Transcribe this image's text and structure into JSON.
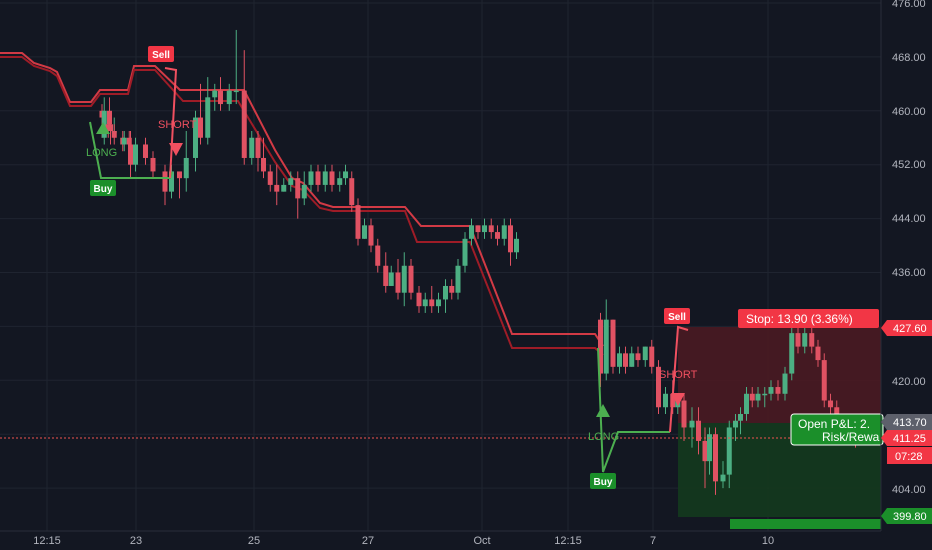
{
  "chart_data": {
    "type": "candlestick",
    "y_axis": {
      "ticks": [
        "476.00",
        "468.00",
        "460.00",
        "452.00",
        "444.00",
        "436.00",
        "427.60",
        "420.00",
        "413.70",
        "411.25",
        "404.00",
        "399.80"
      ],
      "range": [
        397,
        477
      ]
    },
    "x_axis": {
      "ticks": [
        "12:15",
        "23",
        "25",
        "27",
        "Oct",
        "12:15",
        "7",
        "10"
      ]
    },
    "price_labels": {
      "stop_price": "427.60",
      "entry_price": "413.70",
      "last_price": "411.25",
      "countdown": "07:28",
      "target_price": "399.80"
    },
    "annotations": {
      "sell_1": "Sell",
      "short_1": "SHORT",
      "long_1": "LONG",
      "buy_1": "Buy",
      "long_2": "LONG",
      "buy_2": "Buy",
      "sell_2": "Sell",
      "short_2": "SHORT"
    },
    "position_tool": {
      "stop_label": "Stop: 13.90 (3.36%)",
      "pnl_label": "Open P&L: 2.",
      "rr_label": "Risk/Rewa"
    },
    "colors": {
      "background": "#131722",
      "grid": "#1f2430",
      "up": "#26a69a",
      "down": "#ef5350",
      "bull_candle": "#4caf83",
      "bear_candle": "#e05263",
      "trail_stop": "#c62828",
      "long_signal": "#4caf50",
      "short_signal": "#f05060",
      "stop_zone": "#4a1a22",
      "target_zone": "#143a1e",
      "label_red": "#f23645",
      "label_green": "#1b8f2a"
    },
    "candles": [
      [
        406,
        460,
        459,
        456,
        461
      ],
      [
        415,
        456,
        460,
        455,
        462
      ],
      [
        436,
        460,
        458,
        457,
        462
      ],
      [
        455,
        457,
        457,
        456,
        459
      ],
      [
        431,
        458,
        457,
        456,
        459
      ],
      [
        440,
        458,
        457,
        455,
        459
      ],
      [
        455,
        457,
        456,
        455,
        458
      ],
      [
        489,
        456,
        455,
        454,
        457
      ],
      [
        495,
        455,
        456,
        454,
        457
      ],
      [
        515,
        456,
        455,
        454,
        457
      ],
      [
        520,
        455,
        452,
        450,
        457
      ],
      [
        540,
        452,
        455,
        451,
        456
      ],
      [
        580,
        455,
        453,
        452,
        456
      ],
      [
        610,
        453,
        451,
        450,
        454
      ],
      [
        658,
        451,
        448,
        446,
        452
      ],
      [
        684,
        448,
        451,
        447,
        452
      ],
      [
        716,
        451,
        450,
        447,
        451
      ],
      [
        743,
        450,
        453,
        448,
        457
      ],
      [
        780,
        453,
        459,
        451,
        460
      ],
      [
        800,
        459,
        456,
        455,
        464
      ],
      [
        829,
        456,
        462,
        455,
        465
      ],
      [
        857,
        462,
        463,
        460,
        464
      ],
      [
        880,
        463,
        461,
        460,
        465
      ],
      [
        915,
        461,
        463,
        460,
        464
      ],
      [
        943,
        463,
        463,
        461,
        472
      ],
      [
        975,
        463,
        453,
        452,
        469
      ],
      [
        1005,
        453,
        456,
        452,
        457
      ],
      [
        1030,
        456,
        453,
        451,
        457
      ],
      [
        1052,
        453,
        451,
        450,
        456
      ],
      [
        1079,
        451,
        449,
        448,
        452
      ],
      [
        1105,
        449,
        448,
        446,
        452
      ],
      [
        1133,
        448,
        449,
        448,
        450
      ],
      [
        1161,
        449,
        450,
        448,
        451
      ],
      [
        1189,
        450,
        447,
        444,
        451
      ],
      [
        1215,
        447,
        449,
        446,
        451
      ],
      [
        1242,
        449,
        451,
        448,
        452
      ],
      [
        1270,
        451,
        449,
        448,
        452
      ],
      [
        1299,
        449,
        451,
        448,
        452
      ],
      [
        1326,
        451,
        449,
        448,
        452
      ],
      [
        1357,
        449,
        450,
        448,
        451
      ],
      [
        1380,
        450,
        451,
        449,
        452
      ],
      [
        1405,
        450,
        446,
        445,
        451
      ],
      [
        1430,
        446,
        441,
        440,
        447
      ],
      [
        1456,
        441,
        443,
        441,
        444
      ],
      [
        1482,
        443,
        440,
        439,
        444
      ],
      [
        1509,
        440,
        437,
        436,
        441
      ],
      [
        1541,
        437,
        434,
        433,
        439
      ],
      [
        1563,
        434,
        436,
        434,
        437
      ],
      [
        1590,
        436,
        433,
        432,
        438
      ],
      [
        1615,
        433,
        437,
        431,
        439
      ],
      [
        1642,
        437,
        433,
        432,
        438
      ],
      [
        1674,
        433,
        431,
        430,
        434
      ],
      [
        1699,
        431,
        432,
        430,
        433
      ],
      [
        1725,
        432,
        431,
        430,
        434
      ],
      [
        1752,
        431,
        432,
        430,
        433
      ],
      [
        1780,
        432,
        434,
        430,
        435
      ],
      [
        1805,
        434,
        433,
        432,
        435
      ],
      [
        1830,
        433,
        437,
        432,
        438
      ],
      [
        1858,
        437,
        441,
        436,
        442
      ],
      [
        1884,
        441,
        443,
        440,
        444
      ],
      [
        1910,
        443,
        442,
        441,
        443
      ],
      [
        1936,
        442,
        443,
        441,
        444
      ],
      [
        1963,
        443,
        442,
        441,
        444
      ],
      [
        1988,
        442,
        441,
        440,
        443
      ],
      [
        2015,
        441,
        443,
        440,
        444
      ],
      [
        2040,
        443,
        439,
        437,
        444
      ],
      [
        2064,
        439,
        441,
        438,
        442
      ],
      [
        2400,
        429,
        421,
        419,
        430
      ],
      [
        2423,
        421,
        429,
        420,
        432
      ],
      [
        2450,
        429,
        422,
        421,
        429
      ],
      [
        2476,
        422,
        424,
        421,
        425
      ],
      [
        2500,
        424,
        422,
        421,
        425
      ],
      [
        2525,
        422,
        424,
        422,
        425
      ],
      [
        2550,
        424,
        423,
        422,
        425
      ],
      [
        2579,
        423,
        425,
        422,
        425
      ],
      [
        2605,
        425,
        422,
        421,
        426
      ],
      [
        2632,
        422,
        416,
        415,
        423
      ],
      [
        2660,
        416,
        418,
        415,
        419
      ],
      [
        2689,
        418,
        416,
        415,
        420
      ],
      [
        2709,
        416,
        417,
        415,
        418
      ],
      [
        2734,
        417,
        413,
        411,
        418
      ],
      [
        2766,
        413,
        414,
        410,
        416
      ],
      [
        2792,
        414,
        411,
        409,
        416
      ],
      [
        2818,
        411,
        408,
        404,
        413
      ],
      [
        2836,
        408,
        412,
        406,
        413
      ],
      [
        2860,
        412,
        405,
        403,
        413
      ],
      [
        2890,
        405,
        406,
        404,
        408
      ],
      [
        2915,
        406,
        413,
        404,
        414
      ],
      [
        2940,
        413,
        414,
        411,
        415
      ],
      [
        2960,
        414,
        415,
        412,
        416
      ],
      [
        2984,
        415,
        418,
        414,
        419
      ],
      [
        3007,
        418,
        417,
        416,
        419
      ],
      [
        3030,
        417,
        418,
        416,
        419
      ],
      [
        3057,
        418,
        418,
        416,
        419
      ],
      [
        3082,
        418,
        419,
        417,
        420
      ],
      [
        3110,
        419,
        418,
        417,
        420
      ],
      [
        3138,
        418,
        421,
        417,
        422
      ],
      [
        3165,
        421,
        427,
        420,
        428
      ],
      [
        3190,
        427,
        425,
        424,
        428
      ],
      [
        3217,
        425,
        427,
        424,
        429
      ],
      [
        3245,
        427,
        425,
        424,
        430
      ],
      [
        3270,
        425,
        423,
        422,
        426
      ],
      [
        3295,
        423,
        417,
        416,
        424
      ],
      [
        3320,
        417,
        416,
        414,
        418
      ],
      [
        3345,
        416,
        413,
        412,
        417
      ],
      [
        3370,
        413,
        412,
        411,
        414
      ],
      [
        3395,
        412,
        413,
        411,
        414
      ],
      [
        3420,
        413,
        411,
        410,
        414
      ]
    ]
  }
}
